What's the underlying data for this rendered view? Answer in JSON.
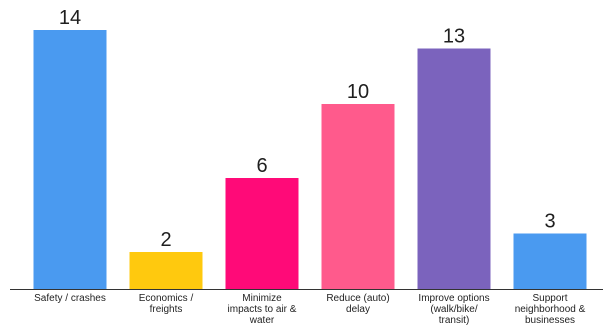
{
  "chart_data": {
    "type": "bar",
    "title": "",
    "xlabel": "",
    "ylabel": "",
    "ylim": [
      0,
      14
    ],
    "grid": false,
    "legend": "none",
    "categories": [
      "Safety / crashes",
      "Economics / freights",
      "Minimize impacts to air & water",
      "Reduce (auto) delay",
      "Improve options (walk/bike/ transit)",
      "Support neighborhood & businesses"
    ],
    "category_lines": [
      [
        "Safety / crashes"
      ],
      [
        "Economics /",
        "freights"
      ],
      [
        "Minimize",
        "impacts to air &",
        "water"
      ],
      [
        "Reduce (auto)",
        "delay"
      ],
      [
        "Improve options",
        "(walk/bike/",
        "transit)"
      ],
      [
        "Support",
        "neighborhood &",
        "businesses"
      ]
    ],
    "values": [
      14,
      2,
      6,
      10,
      13,
      3
    ],
    "colors": [
      "#4a9af0",
      "#ffc90e",
      "#ff0a78",
      "#ff5a8c",
      "#7b63bd",
      "#4a9af0"
    ],
    "data_labels": [
      "14",
      "2",
      "6",
      "10",
      "13",
      "3"
    ],
    "axis_color": "#333333"
  }
}
